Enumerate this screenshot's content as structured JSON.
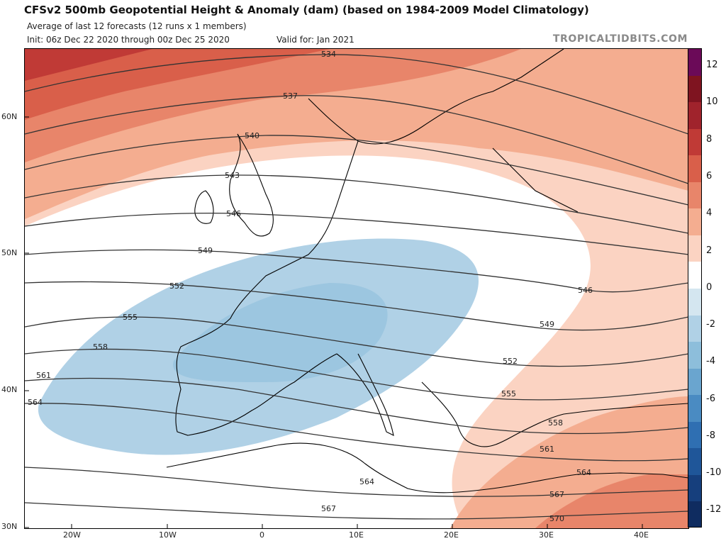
{
  "header": {
    "title": "CFSv2 500mb Geopotential Height & Anomaly (dam) (based on 1984-2009 Model Climatology)",
    "subtitle": "Average of last 12 forecasts (12 runs x 1 members)",
    "init": "Init: 06z Dec 22 2020 through 00z Dec 25 2020",
    "valid": "Valid for: Jan 2021",
    "brand": "TROPICALTIDBITS.COM"
  },
  "axes": {
    "lat_labels": [
      "60N",
      "50N",
      "40N",
      "30N"
    ],
    "lon_labels": [
      "20W",
      "10W",
      "0",
      "10E",
      "20E",
      "30E",
      "40E"
    ]
  },
  "contours": {
    "labels": [
      "534",
      "537",
      "540",
      "543",
      "546",
      "549",
      "552",
      "555",
      "558",
      "561",
      "564",
      "546",
      "549",
      "552",
      "555",
      "558",
      "561",
      "564",
      "564",
      "567",
      "567",
      "570"
    ]
  },
  "colorbar": {
    "labels": [
      "12",
      "10",
      "8",
      "6",
      "4",
      "2",
      "0",
      "-2",
      "-4",
      "-6",
      "-8",
      "-10",
      "-12"
    ],
    "colors": [
      "#6b0a58",
      "#7f1420",
      "#a0232c",
      "#c03a36",
      "#d95f4a",
      "#e8856a",
      "#f4ad90",
      "#fbd3c2",
      "#ffffff",
      "#d4e6f0",
      "#b0d1e6",
      "#8dbedb",
      "#6aa5cf",
      "#4a8bc2",
      "#2f6fb2",
      "#1f5699",
      "#163f7d",
      "#0f2c60"
    ]
  }
}
